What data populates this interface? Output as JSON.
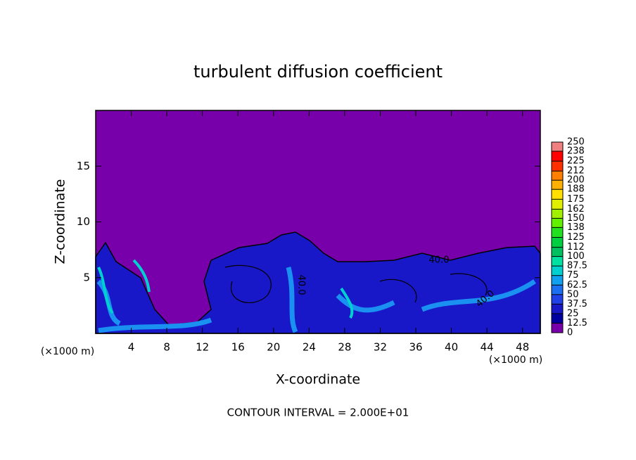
{
  "chart_data": {
    "type": "contour",
    "title": "turbulent diffusion coefficient",
    "xlabel": "X-coordinate",
    "ylabel": "Z-coordinate",
    "x_unit_label": "(×1000 m)",
    "y_unit_label": "(×1000 m)",
    "annotation": "CONTOUR INTERVAL = 2.000E+01",
    "contour_labels": [
      "40.0",
      "40.0",
      "40.0"
    ],
    "xlim": [
      0,
      50
    ],
    "xticks": [
      4,
      8,
      12,
      16,
      20,
      24,
      28,
      32,
      36,
      40,
      44,
      48
    ],
    "ylim": [
      0,
      20
    ],
    "yticks": [
      5,
      10,
      15
    ],
    "colorbar": {
      "levels": [
        0,
        12.5,
        25,
        37.5,
        50,
        62.5,
        75,
        87.5,
        100,
        112,
        125,
        138,
        150,
        162,
        175,
        188,
        200,
        212,
        225,
        238,
        250
      ],
      "colors": [
        "#7700aa",
        "#0000a0",
        "#1818c8",
        "#2040e8",
        "#1a70f0",
        "#10a0f0",
        "#00d0d0",
        "#00e0a0",
        "#00c060",
        "#00d040",
        "#20e020",
        "#60f000",
        "#a0f000",
        "#e0f000",
        "#ffe000",
        "#ffb000",
        "#ff8000",
        "#ff3000",
        "#ff0000",
        "#f08080"
      ]
    }
  }
}
